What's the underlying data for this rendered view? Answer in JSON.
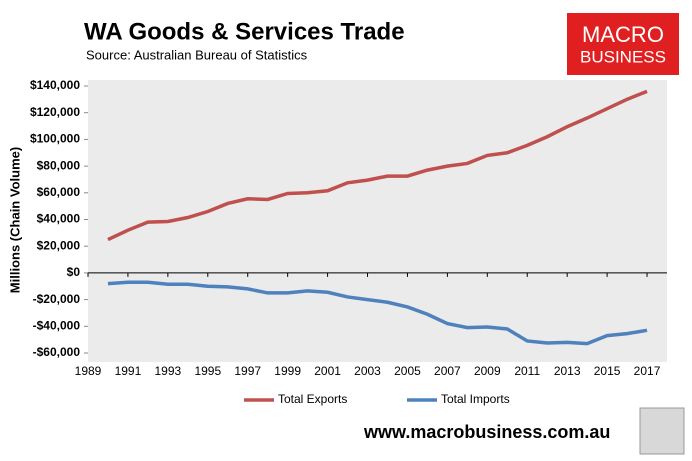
{
  "chart_data": {
    "type": "line",
    "title": "WA Goods & Services Trade",
    "subtitle": "Source:  Australian Bureau of Statistics",
    "y_label": "Millions (Chain Volume)",
    "x": [
      1990,
      1991,
      1992,
      1993,
      1994,
      1995,
      1996,
      1997,
      1998,
      1999,
      2000,
      2001,
      2002,
      2003,
      2004,
      2005,
      2006,
      2007,
      2008,
      2009,
      2010,
      2011,
      2012,
      2013,
      2014,
      2015,
      2016,
      2017
    ],
    "series": [
      {
        "name": "Total Exports",
        "color": "#c0504d",
        "values": [
          25000,
          32000,
          38000,
          38500,
          41500,
          46000,
          52000,
          55500,
          55000,
          59500,
          60000,
          61500,
          67500,
          69500,
          72500,
          72500,
          77000,
          80000,
          82000,
          88000,
          90000,
          95500,
          102000,
          109500,
          116000,
          123000,
          130000,
          136000
        ]
      },
      {
        "name": "Total Imports",
        "color": "#4f81bd",
        "values": [
          -8000,
          -7000,
          -7000,
          -8500,
          -8500,
          -10000,
          -10500,
          -12000,
          -15000,
          -15000,
          -13500,
          -14500,
          -18000,
          -20000,
          -22000,
          -25500,
          -31000,
          -38000,
          -41000,
          -40500,
          -42000,
          -51000,
          -52500,
          -52000,
          -53000,
          -47000,
          -45500,
          -43000
        ]
      }
    ],
    "xlim": [
      1989,
      2018
    ],
    "xticks": [
      1989,
      1991,
      1993,
      1995,
      1997,
      1999,
      2001,
      2003,
      2005,
      2007,
      2009,
      2011,
      2013,
      2015,
      2017
    ],
    "ylim": [
      -60000,
      140000
    ],
    "yticks": [
      {
        "value": -60000,
        "label": "-$60,000"
      },
      {
        "value": -40000,
        "label": "-$40,000"
      },
      {
        "value": -20000,
        "label": "-$20,000"
      },
      {
        "value": 0,
        "label": "$0"
      },
      {
        "value": 20000,
        "label": "$20,000"
      },
      {
        "value": 40000,
        "label": "$40,000"
      },
      {
        "value": 60000,
        "label": "$60,000"
      },
      {
        "value": 80000,
        "label": "$80,000"
      },
      {
        "value": 100000,
        "label": "$100,000"
      },
      {
        "value": 120000,
        "label": "$120,000"
      },
      {
        "value": 140000,
        "label": "$140,000"
      }
    ],
    "legend": "bottom"
  },
  "logo": {
    "line1": "MACRO",
    "line2": "BUSINESS"
  },
  "footer": "www.macrobusiness.com.au"
}
